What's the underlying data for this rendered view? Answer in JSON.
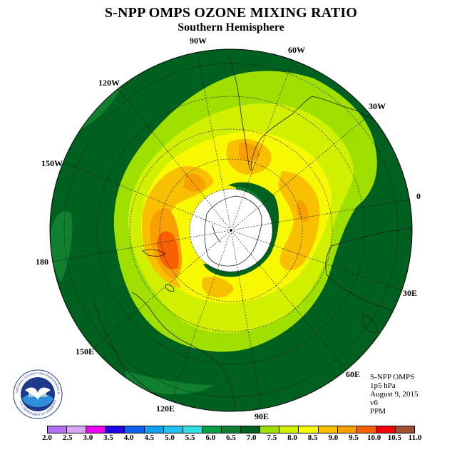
{
  "title": "S-NPP OMPS OZONE MIXING RATIO",
  "subtitle": "Southern Hemisphere",
  "longitude_labels": [
    "90W",
    "60W",
    "30W",
    "0",
    "30E",
    "60E",
    "90E",
    "120E",
    "150E",
    "180",
    "150W",
    "120W"
  ],
  "info": {
    "instrument": "S-NPP OMPS",
    "level": "1p5 hPa",
    "date": "August 9, 2015",
    "version": "v6",
    "units": "PPM"
  },
  "logo": {
    "text": "NOAA",
    "ring_text": "NATIONAL OCEANIC AND ATMOSPHERIC ADMINISTRATION",
    "bottom_text": "U.S. DEPARTMENT OF COMMERCE"
  },
  "colorbar": {
    "ticks": [
      "2.0",
      "2.5",
      "3.0",
      "3.5",
      "4.0",
      "4.5",
      "5.0",
      "5.5",
      "6.0",
      "6.5",
      "7.0",
      "7.5",
      "8.0",
      "8.5",
      "9.0",
      "9.5",
      "10.0",
      "10.5",
      "11.0"
    ],
    "colors": [
      "#b070f0",
      "#d8a8f0",
      "#f000f0",
      "#2000e0",
      "#1060f0",
      "#10a0f0",
      "#20c0f0",
      "#30e0e0",
      "#00a040",
      "#108030",
      "#006020",
      "#a0e000",
      "#d0f000",
      "#f8f800",
      "#f8c000",
      "#f8a000",
      "#f86000",
      "#f00000",
      "#a05030"
    ]
  }
}
